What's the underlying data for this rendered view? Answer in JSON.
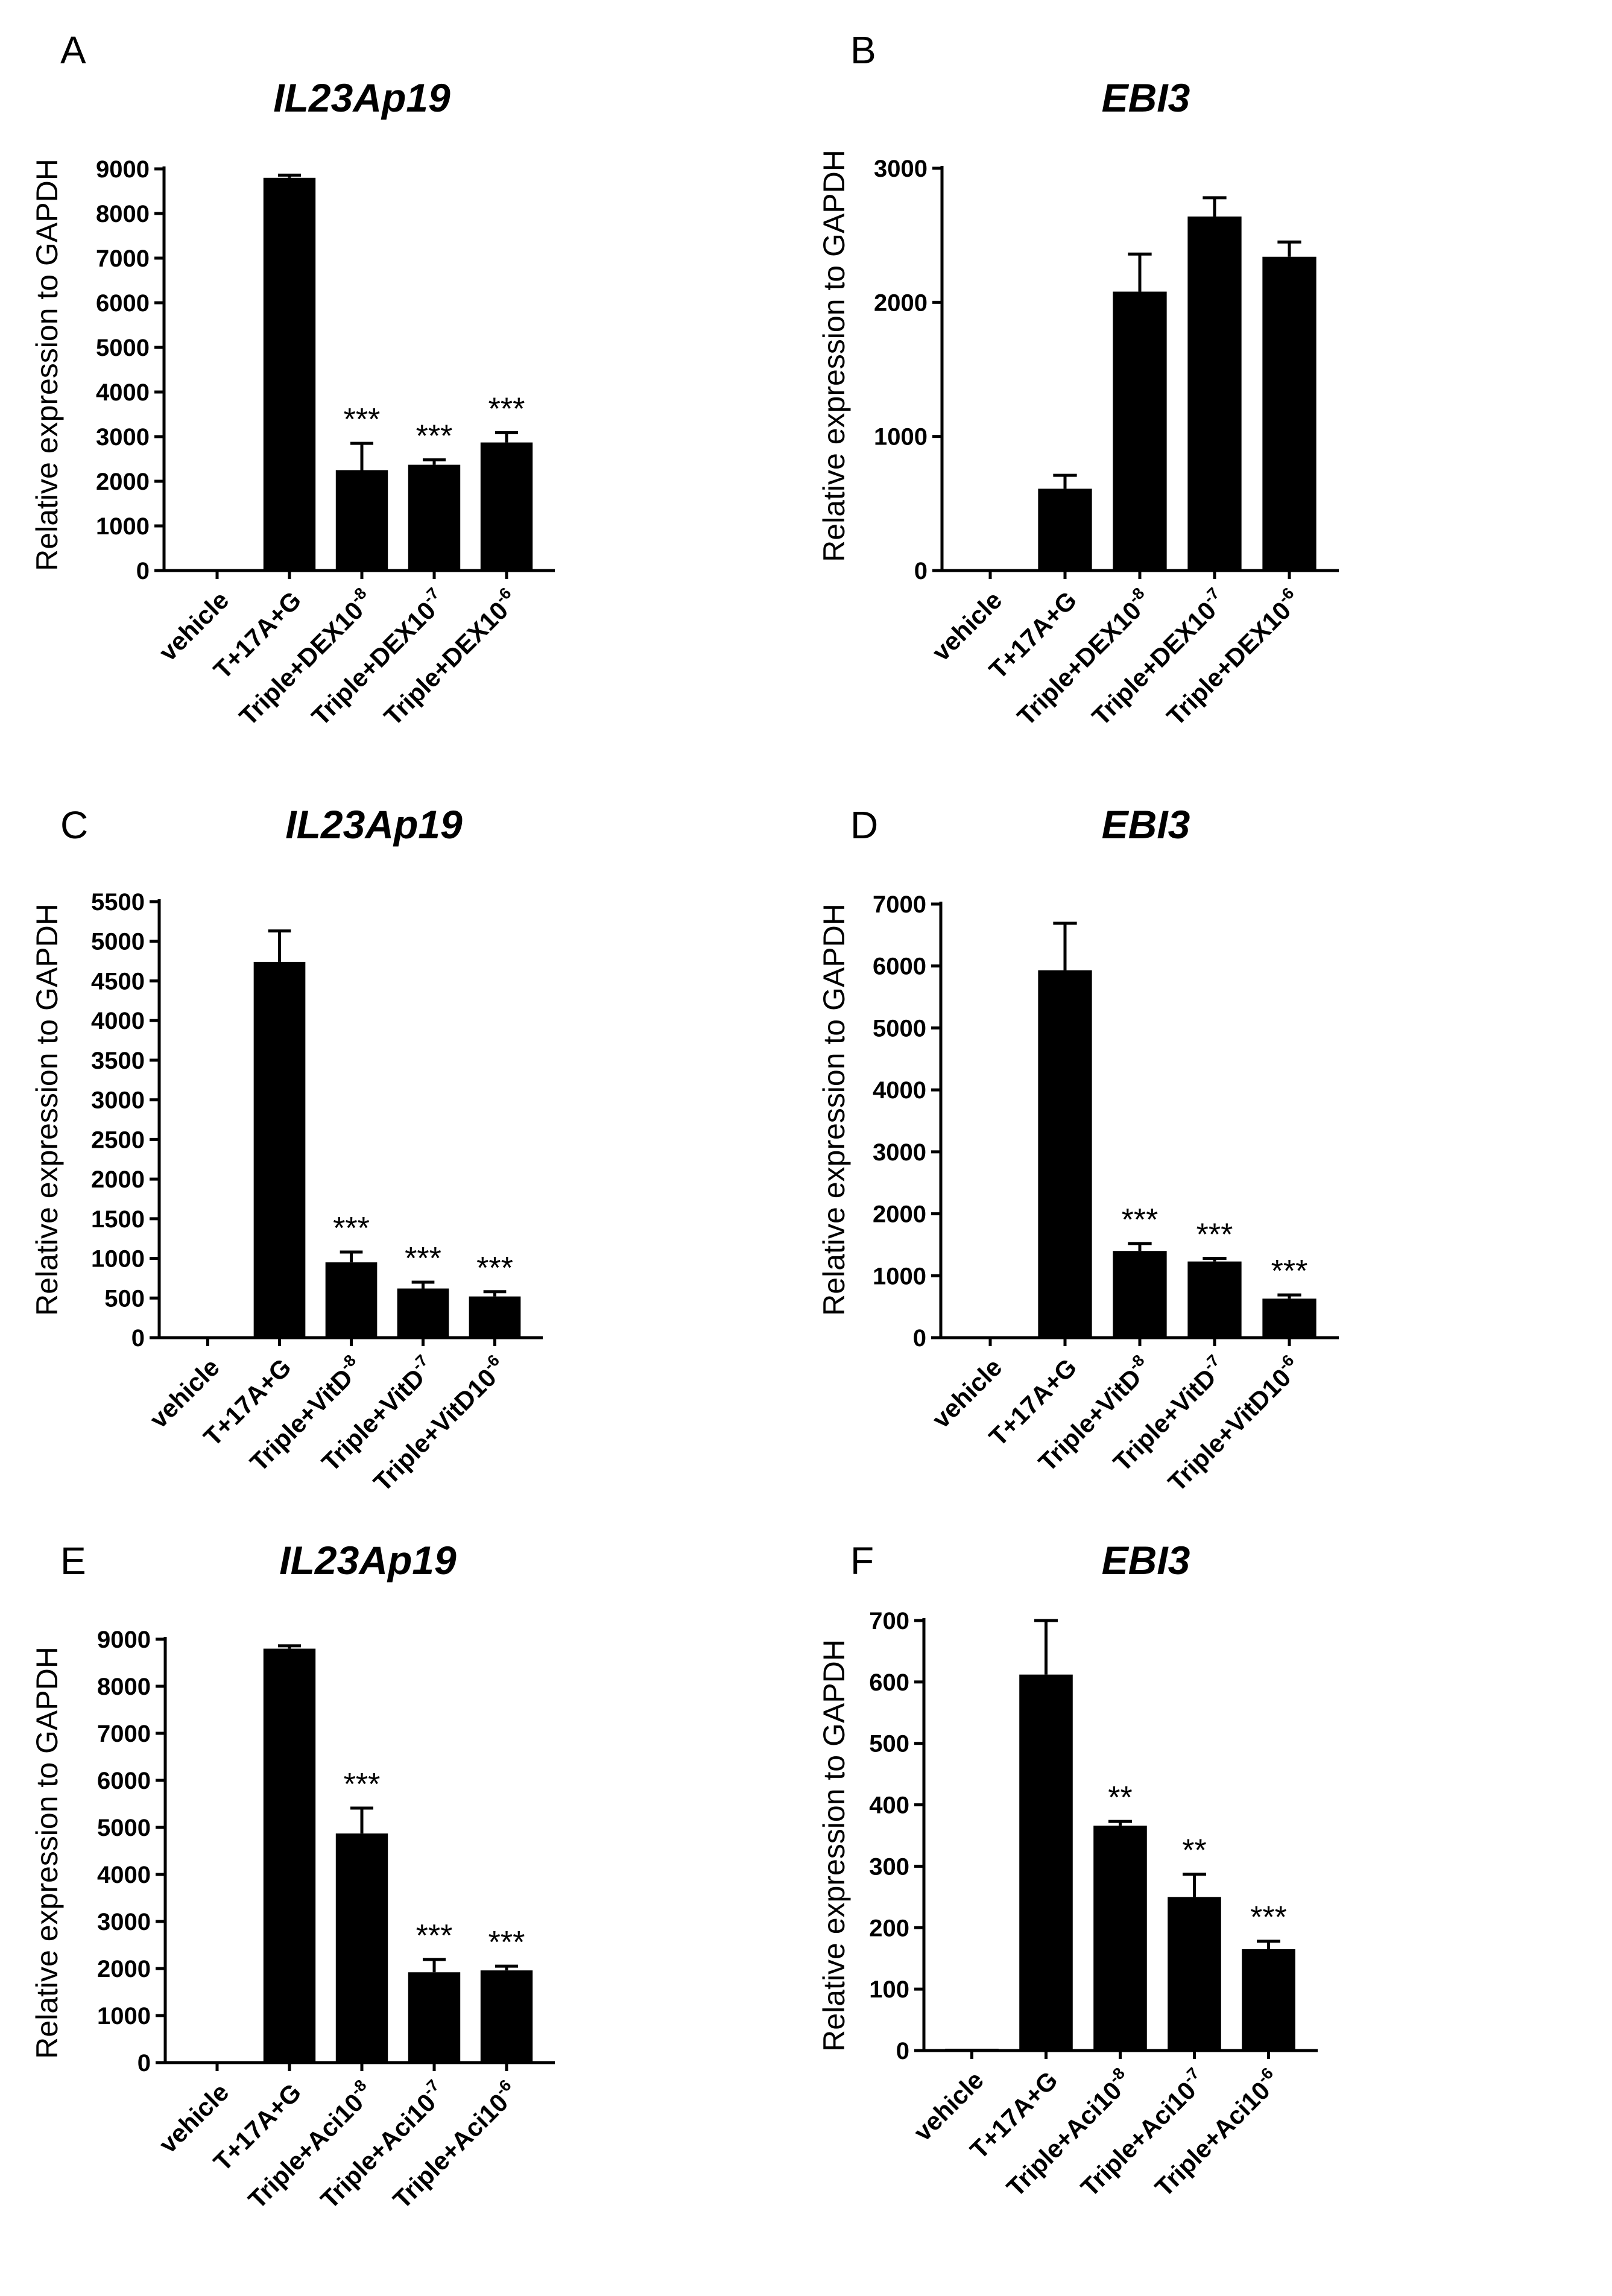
{
  "chart_data": [
    {
      "panel": "A",
      "type": "bar",
      "title": "IL23Ap19",
      "ylabel": "Relative expression to GAPDH",
      "xlabel": "",
      "ylim": [
        0,
        9000
      ],
      "yticks": [
        0,
        1000,
        2000,
        3000,
        4000,
        5000,
        6000,
        7000,
        8000,
        9000
      ],
      "categories": [
        {
          "base": "vehicle",
          "sup": ""
        },
        {
          "base": "T+17A+G",
          "sup": ""
        },
        {
          "base": "Triple+DEX10",
          "sup": "-8"
        },
        {
          "base": "Triple+DEX10",
          "sup": "-7"
        },
        {
          "base": "Triple+DEX10",
          "sup": "-6"
        }
      ],
      "values": [
        0,
        8800,
        2250,
        2370,
        2870
      ],
      "errors": [
        0,
        60,
        600,
        110,
        220
      ],
      "significance": [
        "",
        "",
        "***",
        "***",
        "***"
      ]
    },
    {
      "panel": "B",
      "type": "bar",
      "title": "EBI3",
      "ylabel": "Relative expression to GAPDH",
      "xlabel": "",
      "ylim": [
        0,
        3000
      ],
      "yticks": [
        0,
        1000,
        2000,
        3000
      ],
      "categories": [
        {
          "base": "vehicle",
          "sup": ""
        },
        {
          "base": "T+17A+G",
          "sup": ""
        },
        {
          "base": "Triple+DEX10",
          "sup": "-8"
        },
        {
          "base": "Triple+DEX10",
          "sup": "-7"
        },
        {
          "base": "Triple+DEX10",
          "sup": "-6"
        }
      ],
      "values": [
        0,
        610,
        2080,
        2640,
        2340
      ],
      "errors": [
        0,
        100,
        280,
        140,
        110
      ],
      "significance": [
        "",
        "",
        "",
        "",
        ""
      ]
    },
    {
      "panel": "C",
      "type": "bar",
      "title": "IL23Ap19",
      "ylabel": "Relative expression to GAPDH",
      "xlabel": "",
      "ylim": [
        0,
        5500
      ],
      "yticks": [
        0,
        500,
        1000,
        1500,
        2000,
        2500,
        3000,
        3500,
        4000,
        4500,
        5000,
        5500
      ],
      "categories": [
        {
          "base": "vehicle",
          "sup": ""
        },
        {
          "base": "T+17A+G",
          "sup": ""
        },
        {
          "base": "Triple+VitD",
          "sup": "-8"
        },
        {
          "base": "Triple+VitD",
          "sup": "-7"
        },
        {
          "base": "Triple+VitD10",
          "sup": "-6"
        }
      ],
      "values": [
        0,
        4740,
        950,
        620,
        520
      ],
      "errors": [
        0,
        390,
        130,
        80,
        60
      ],
      "significance": [
        "",
        "",
        "***",
        "***",
        "***"
      ]
    },
    {
      "panel": "D",
      "type": "bar",
      "title": "EBI3",
      "ylabel": "Relative expression to GAPDH",
      "xlabel": "",
      "ylim": [
        0,
        7000
      ],
      "yticks": [
        0,
        1000,
        2000,
        3000,
        4000,
        5000,
        6000,
        7000
      ],
      "categories": [
        {
          "base": "vehicle",
          "sup": ""
        },
        {
          "base": "T+17A+G",
          "sup": ""
        },
        {
          "base": "Triple+VitD",
          "sup": "-8"
        },
        {
          "base": "Triple+VitD",
          "sup": "-7"
        },
        {
          "base": "Triple+VitD10",
          "sup": "-6"
        }
      ],
      "values": [
        0,
        5930,
        1400,
        1230,
        630
      ],
      "errors": [
        0,
        760,
        120,
        50,
        60
      ],
      "significance": [
        "",
        "",
        "***",
        "***",
        "***"
      ]
    },
    {
      "panel": "E",
      "type": "bar",
      "title": "IL23Ap19",
      "ylabel": "Relative expression to GAPDH",
      "xlabel": "",
      "ylim": [
        0,
        9000
      ],
      "yticks": [
        0,
        1000,
        2000,
        3000,
        4000,
        5000,
        6000,
        7000,
        8000,
        9000
      ],
      "categories": [
        {
          "base": "vehicle",
          "sup": ""
        },
        {
          "base": "T+17A+G",
          "sup": ""
        },
        {
          "base": "Triple+Aci10",
          "sup": "-8"
        },
        {
          "base": "Triple+Aci10",
          "sup": "-7"
        },
        {
          "base": "Triple+Aci10",
          "sup": "-6"
        }
      ],
      "values": [
        0,
        8800,
        4870,
        1920,
        1960
      ],
      "errors": [
        0,
        60,
        540,
        270,
        90
      ],
      "significance": [
        "",
        "",
        "***",
        "***",
        "***"
      ]
    },
    {
      "panel": "F",
      "type": "bar",
      "title": "EBI3",
      "ylabel": "Relative expression to GAPDH",
      "xlabel": "",
      "ylim": [
        0,
        700
      ],
      "yticks": [
        0,
        100,
        200,
        300,
        400,
        500,
        600,
        700
      ],
      "categories": [
        {
          "base": "vehicle",
          "sup": ""
        },
        {
          "base": "T+17A+G",
          "sup": ""
        },
        {
          "base": "Triple+Aci10",
          "sup": "-8"
        },
        {
          "base": "Triple+Aci10",
          "sup": "-7"
        },
        {
          "base": "Triple+Aci10",
          "sup": "-6"
        }
      ],
      "values": [
        3,
        612,
        366,
        250,
        165
      ],
      "errors": [
        0,
        88,
        7,
        37,
        13
      ],
      "significance": [
        "",
        "",
        "**",
        "**",
        "***"
      ]
    }
  ]
}
